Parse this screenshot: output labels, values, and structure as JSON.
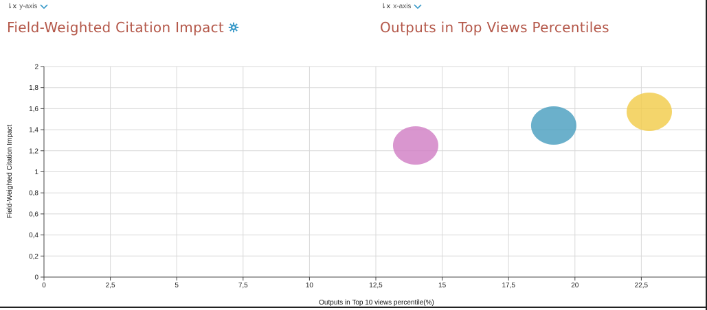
{
  "y_selector": {
    "label": "y-axis",
    "icon": "sort-axis-icon"
  },
  "x_selector": {
    "label": "x-axis",
    "icon": "sort-axis-icon"
  },
  "y_metric": {
    "title": "Field-Weighted Citation Impact",
    "icon": "gear-icon"
  },
  "x_metric": {
    "title": "Outputs in Top Views Percentiles"
  },
  "colors": {
    "title": "#b4584a",
    "chevron": "#3a9ac9",
    "gear": "#3a9ac9",
    "grid": "#d8d8d8"
  },
  "chart_data": {
    "type": "scatter",
    "xlabel": "Outputs in Top 10 views percentile(%)",
    "ylabel": "Field-Weighted Citation Impact",
    "xlim": [
      0,
      25
    ],
    "ylim": [
      0,
      2
    ],
    "x_ticks": [
      "0",
      "2,5",
      "5",
      "7,5",
      "10",
      "12,5",
      "15",
      "17,5",
      "20",
      "22,5"
    ],
    "y_ticks": [
      "0",
      "0,2",
      "0,4",
      "0,6",
      "0,8",
      "1",
      "1,2",
      "1,4",
      "1,6",
      "1,8",
      "2"
    ],
    "grid": true,
    "series": [
      {
        "x": 14.0,
        "y": 1.25,
        "color": "#d17fc4"
      },
      {
        "x": 19.2,
        "y": 1.44,
        "color": "#4a9fbf"
      },
      {
        "x": 22.8,
        "y": 1.57,
        "color": "#f2cc4a"
      }
    ]
  }
}
